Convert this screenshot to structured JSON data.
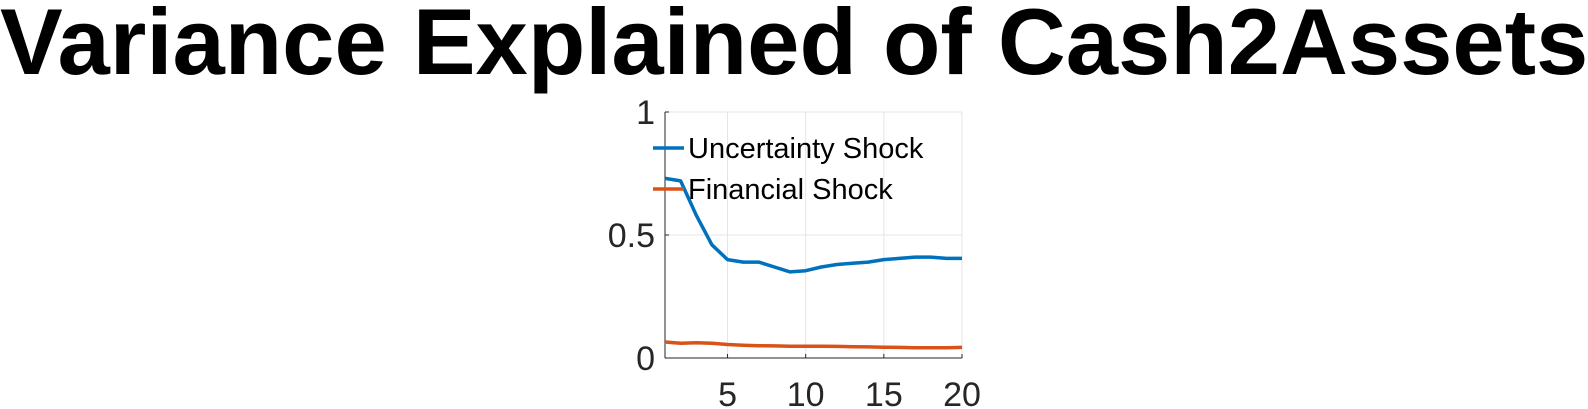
{
  "chart_data": {
    "type": "line",
    "title": "Variance Explained of Cash2Assets",
    "xlabel": "",
    "ylabel": "",
    "xlim": [
      1,
      20
    ],
    "ylim": [
      0,
      1
    ],
    "xticks": [
      5,
      10,
      15,
      20
    ],
    "yticks": [
      0,
      0.5,
      1
    ],
    "ytick_labels": [
      "0",
      "0.5",
      "1"
    ],
    "grid": true,
    "legend_position": "top-left",
    "x": [
      1,
      2,
      3,
      4,
      5,
      6,
      7,
      8,
      9,
      10,
      11,
      12,
      13,
      14,
      15,
      16,
      17,
      18,
      19,
      20
    ],
    "series": [
      {
        "name": "Uncertainty Shock",
        "color": "#0072BD",
        "values": [
          0.73,
          0.72,
          0.58,
          0.46,
          0.4,
          0.39,
          0.39,
          0.37,
          0.35,
          0.355,
          0.37,
          0.38,
          0.385,
          0.39,
          0.4,
          0.405,
          0.41,
          0.41,
          0.405,
          0.405
        ]
      },
      {
        "name": "Financial Shock",
        "color": "#D95319",
        "values": [
          0.065,
          0.06,
          0.062,
          0.06,
          0.055,
          0.052,
          0.05,
          0.049,
          0.048,
          0.048,
          0.048,
          0.047,
          0.046,
          0.045,
          0.044,
          0.043,
          0.042,
          0.042,
          0.042,
          0.043
        ]
      }
    ]
  }
}
